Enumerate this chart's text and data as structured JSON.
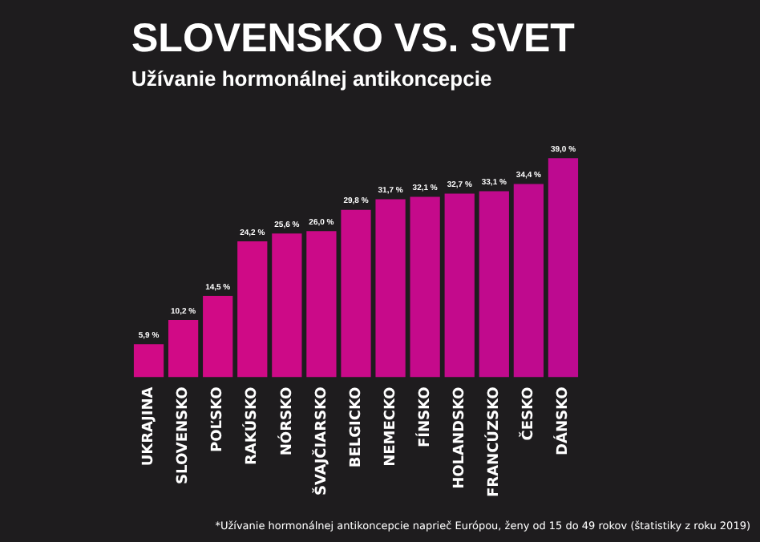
{
  "chart_data": {
    "type": "bar",
    "title": "SLOVENSKO VS. SVET",
    "subtitle": "Užívanie hormonálnej antikoncepcie",
    "categories": [
      "UKRAJINA",
      "SLOVENSKO",
      "POĽSKO",
      "RAKÚSKO",
      "NÓRSKO",
      "ŠVAJČIARSKO",
      "BELGICKO",
      "NEMECKO",
      "FÍNSKO",
      "HOLANDSKO",
      "FRANCÚZSKO",
      "ČESKO",
      "DÁNSKO"
    ],
    "values": [
      5.9,
      10.2,
      14.5,
      24.2,
      25.6,
      26.0,
      29.8,
      31.7,
      32.1,
      32.7,
      33.1,
      34.4,
      39.0
    ],
    "value_labels": [
      "5,9 %",
      "10,2 %",
      "14,5 %",
      "24,2 %",
      "25,6 %",
      "26,0 %",
      "29,8 %",
      "31,7 %",
      "32,1 %",
      "32,7 %",
      "33,1 %",
      "34,4 %",
      "39,0 %"
    ],
    "colors": [
      "#d10a86",
      "#d10a86",
      "#d10a86",
      "#cf0a86",
      "#cd0a87",
      "#cb0a88",
      "#c90a89",
      "#c70a8a",
      "#c50a8b",
      "#c30a8c",
      "#c10a8d",
      "#bf0a8e",
      "#bd0a90"
    ],
    "annotations": [
      "*Užívanie hormonálnej antikoncepcie naprieč Európou, ženy od 15 do 49 rokov (štatistiky z roku 2019)"
    ],
    "legend": false
  }
}
